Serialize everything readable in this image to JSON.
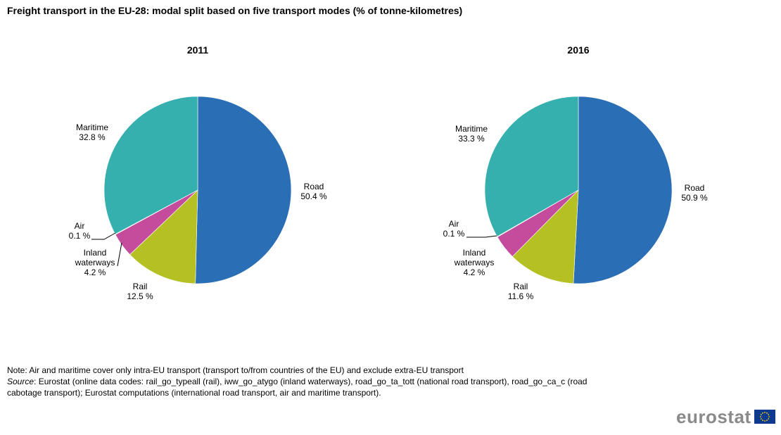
{
  "title": "Freight transport in the EU-28: modal split based on five transport modes (% of tonne-kilometres)",
  "chart_data": [
    {
      "type": "pie",
      "title": "2011",
      "unit": "%",
      "slices": [
        {
          "label": "Road",
          "value": 50.4,
          "display": "50.4 %",
          "color": "#2a6eb5"
        },
        {
          "label": "Rail",
          "value": 12.5,
          "display": "12.5 %",
          "color": "#b5c122"
        },
        {
          "label_lines": [
            "Inland",
            "waterways"
          ],
          "label": "Inland waterways",
          "value": 4.2,
          "display": "4.2 %",
          "color": "#c54b9d"
        },
        {
          "label": "Air",
          "value": 0.1,
          "display": "0.1 %",
          "color": "#d9d9d9"
        },
        {
          "label": "Maritime",
          "value": 32.8,
          "display": "32.8 %",
          "color": "#35b0ae"
        }
      ]
    },
    {
      "type": "pie",
      "title": "2016",
      "unit": "%",
      "slices": [
        {
          "label": "Road",
          "value": 50.9,
          "display": "50.9 %",
          "color": "#2a6eb5"
        },
        {
          "label": "Rail",
          "value": 11.6,
          "display": "11.6 %",
          "color": "#b5c122"
        },
        {
          "label_lines": [
            "Inland",
            "waterways"
          ],
          "label": "Inland waterways",
          "value": 4.2,
          "display": "4.2 %",
          "color": "#c54b9d"
        },
        {
          "label": "Air",
          "value": 0.1,
          "display": "0.1 %",
          "color": "#d9d9d9"
        },
        {
          "label": "Maritime",
          "value": 33.3,
          "display": "33.3 %",
          "color": "#35b0ae"
        }
      ]
    }
  ],
  "notes": {
    "note": "Note: Air and maritime cover only intra-EU transport (transport to/from countries of the EU) and exclude extra-EU transport",
    "source_label": "Source",
    "source_text": ": Eurostat (online data codes: rail_go_typeall (rail), iww_go_atygo (inland waterways), road_go_ta_tott (national road transport), road_go_ca_c (road cabotage transport); Eurostat computations (international road transport, air and maritime transport)."
  },
  "logo": {
    "text": "eurostat",
    "flag_color": "#0d3a8f",
    "star_color": "#ffdd00"
  }
}
